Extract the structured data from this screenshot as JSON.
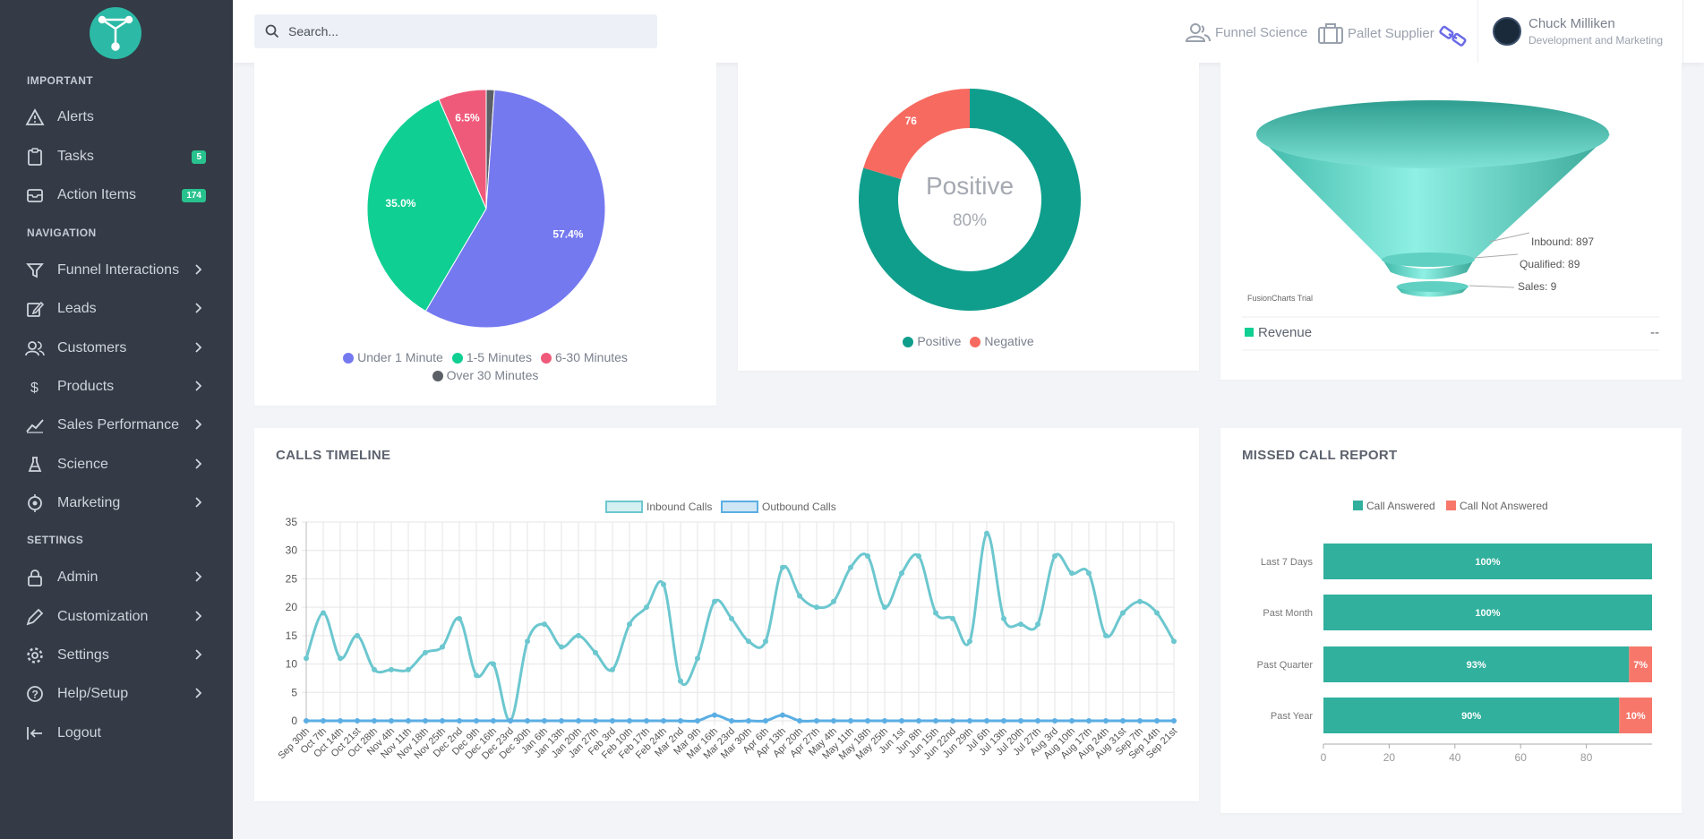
{
  "topbar": {
    "search_placeholder": "Search...",
    "links": [
      {
        "label": "Funnel Science",
        "icon": "users-icon"
      },
      {
        "label": "Pallet Supplier",
        "icon": "briefcase-icon"
      }
    ],
    "user": {
      "name": "Chuck Milliken",
      "role": "Development and Marketing"
    }
  },
  "sidebar": {
    "sections": [
      "IMPORTANT",
      "NAVIGATION",
      "SETTINGS"
    ],
    "important": [
      {
        "label": "Alerts",
        "icon": "warning-icon"
      },
      {
        "label": "Tasks",
        "icon": "clipboard-icon",
        "badge": "5"
      },
      {
        "label": "Action Items",
        "icon": "inbox-icon",
        "badge": "174"
      }
    ],
    "navigation": [
      {
        "label": "Funnel Interactions",
        "icon": "filter-icon"
      },
      {
        "label": "Leads",
        "icon": "edit-icon"
      },
      {
        "label": "Customers",
        "icon": "users-icon"
      },
      {
        "label": "Products",
        "icon": "dollar-icon"
      },
      {
        "label": "Sales Performance",
        "icon": "trend-icon"
      },
      {
        "label": "Science",
        "icon": "flask-icon"
      },
      {
        "label": "Marketing",
        "icon": "target-icon"
      }
    ],
    "settings": [
      {
        "label": "Admin",
        "icon": "lock-icon"
      },
      {
        "label": "Customization",
        "icon": "pen-icon"
      },
      {
        "label": "Settings",
        "icon": "gear-icon"
      },
      {
        "label": "Help/Setup",
        "icon": "help-icon"
      },
      {
        "label": "Logout",
        "icon": "logout-icon"
      }
    ]
  },
  "colors": {
    "purple": "#7579f0",
    "green": "#10cf93",
    "pink": "#f05a7a",
    "gray": "#5b5f66",
    "teal": "#0f9e8c",
    "salmon": "#f76a60",
    "bar_teal": "#30b09d",
    "bar_red": "#f7786b",
    "line_inbound": "#6cc7cf",
    "line_outbound": "#5aaee3"
  },
  "chart_data": [
    {
      "type": "pie",
      "labels": [
        "Under 1 Minute",
        "1-5 Minutes",
        "6-30 Minutes",
        "Over 30 Minutes"
      ],
      "values": [
        57.4,
        35.0,
        6.5,
        1.1
      ],
      "value_labels": [
        "57.4%",
        "35.0%",
        "6.5%",
        ""
      ]
    },
    {
      "type": "pie",
      "donut": true,
      "labels": [
        "Positive",
        "Negative"
      ],
      "values": [
        297,
        76
      ],
      "center_title": "Positive",
      "center_value": "80%"
    },
    {
      "type": "funnel",
      "stages": [
        {
          "label": "Inbound: 897",
          "value": 897
        },
        {
          "label": "Qualified: 89",
          "value": 89
        },
        {
          "label": "Sales: 9",
          "value": 9
        }
      ],
      "watermark": "FusionCharts Trial",
      "footer_label": "Revenue",
      "footer_value": "--"
    },
    {
      "type": "line",
      "title": "CALLS TIMELINE",
      "categories": [
        "Sep 30th",
        "Oct 7th",
        "Oct 14th",
        "Oct 21st",
        "Oct 28th",
        "Nov 4th",
        "Nov 11th",
        "Nov 18th",
        "Nov 25th",
        "Dec 2nd",
        "Dec 9th",
        "Dec 16th",
        "Dec 23rd",
        "Dec 30th",
        "Jan 6th",
        "Jan 13th",
        "Jan 20th",
        "Jan 27th",
        "Feb 3rd",
        "Feb 10th",
        "Feb 17th",
        "Feb 24th",
        "Mar 2nd",
        "Mar 9th",
        "Mar 16th",
        "Mar 23rd",
        "Mar 30th",
        "Apr 6th",
        "Apr 13th",
        "Apr 20th",
        "Apr 27th",
        "May 4th",
        "May 11th",
        "May 18th",
        "May 25th",
        "Jun 1st",
        "Jun 8th",
        "Jun 15th",
        "Jun 22nd",
        "Jun 29th",
        "Jul 6th",
        "Jul 13th",
        "Jul 20th",
        "Jul 27th",
        "Aug 3rd",
        "Aug 10th",
        "Aug 17th",
        "Aug 24th",
        "Aug 31st",
        "Sep 7th",
        "Sep 14th",
        "Sep 21st"
      ],
      "series": [
        {
          "name": "Inbound Calls",
          "values": [
            11,
            19,
            11,
            15,
            9,
            9,
            9,
            12,
            13,
            18,
            8,
            10,
            0,
            14,
            17,
            13,
            15,
            12,
            9,
            17,
            20,
            24,
            7,
            11,
            21,
            18,
            14,
            14,
            27,
            22,
            20,
            21,
            27,
            29,
            20,
            26,
            29,
            19,
            18,
            14,
            33,
            18,
            17,
            17,
            29,
            26,
            26,
            15,
            19,
            21,
            19,
            14
          ]
        },
        {
          "name": "Outbound Calls",
          "values": [
            0,
            0,
            0,
            0,
            0,
            0,
            0,
            0,
            0,
            0,
            0,
            0,
            0,
            0,
            0,
            0,
            0,
            0,
            0,
            0,
            0,
            0,
            0,
            0,
            1,
            0,
            0,
            0,
            1,
            0,
            0,
            0,
            0,
            0,
            0,
            0,
            0,
            0,
            0,
            0,
            0,
            0,
            0,
            0,
            0,
            0,
            0,
            0,
            0,
            0,
            0,
            0
          ]
        }
      ],
      "ylim": [
        0,
        35
      ],
      "yticks": [
        0,
        5,
        10,
        15,
        20,
        25,
        30,
        35
      ]
    },
    {
      "type": "bar",
      "orientation": "horizontal",
      "stacked": true,
      "title": "MISSED CALL REPORT",
      "categories": [
        "Last 7 Days",
        "Past Month",
        "Past Quarter",
        "Past Year"
      ],
      "series": [
        {
          "name": "Call Answered",
          "values": [
            100,
            100,
            93,
            90
          ],
          "labels": [
            "100%",
            "100%",
            "93%",
            "90%"
          ]
        },
        {
          "name": "Call Not Answered",
          "values": [
            0,
            0,
            7,
            10
          ],
          "labels": [
            "",
            "",
            "7%",
            "10%"
          ]
        }
      ],
      "xticks": [
        0,
        20,
        40,
        60,
        80
      ]
    }
  ]
}
